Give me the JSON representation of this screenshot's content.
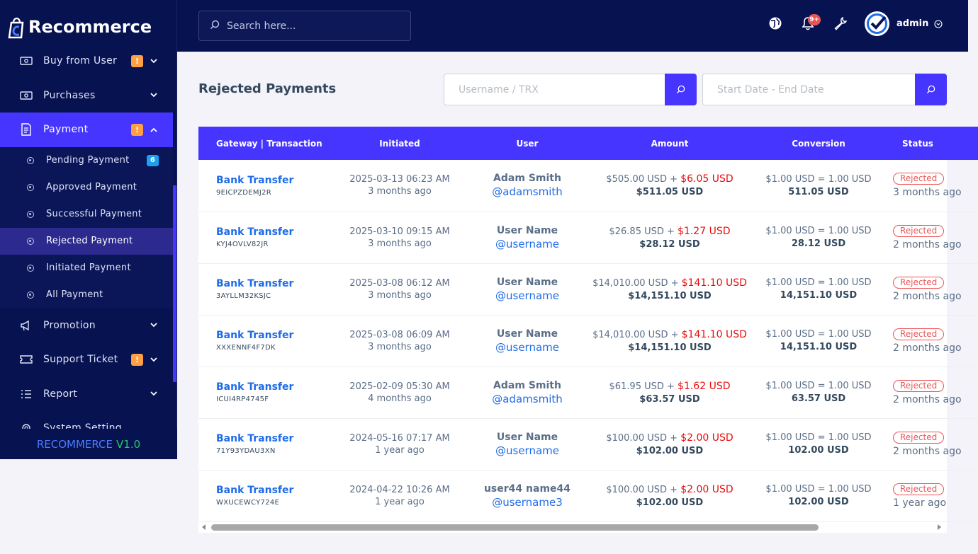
{
  "brand": {
    "logo_text": "Recommerce",
    "footer_brand": "RECOMMERCE",
    "footer_version": "V1.0"
  },
  "sidebar": {
    "items": [
      {
        "label": "Buy from User",
        "icon": "money-icon",
        "badge": "!",
        "chevron": "down"
      },
      {
        "label": "Purchases",
        "icon": "money-icon",
        "badge": "",
        "chevron": "down"
      },
      {
        "label": "Payment",
        "icon": "payment-icon",
        "badge": "!",
        "chevron": "up"
      },
      {
        "label": "Promotion",
        "icon": "megaphone-icon",
        "badge": "",
        "chevron": "down"
      },
      {
        "label": "Support Ticket",
        "icon": "ticket-icon",
        "badge": "!",
        "chevron": "down"
      },
      {
        "label": "Report",
        "icon": "list-icon",
        "badge": "",
        "chevron": "down"
      },
      {
        "label": "System Setting",
        "icon": "gear-icon",
        "badge": "",
        "chevron": ""
      }
    ],
    "payment_submenu": [
      {
        "label": "Pending Payment",
        "badge": "6"
      },
      {
        "label": "Approved Payment",
        "badge": ""
      },
      {
        "label": "Successful Payment",
        "badge": ""
      },
      {
        "label": "Rejected Payment",
        "badge": ""
      },
      {
        "label": "Initiated Payment",
        "badge": ""
      },
      {
        "label": "All Payment",
        "badge": ""
      }
    ]
  },
  "topbar": {
    "search_placeholder": "Search here...",
    "notification_badge": "9+",
    "username": "admin"
  },
  "main": {
    "title": "Rejected Payments",
    "filter_trx_placeholder": "Username / TRX",
    "filter_date_placeholder": "Start Date - End Date"
  },
  "table": {
    "headers": [
      "Gateway | Transaction",
      "Initiated",
      "User",
      "Amount",
      "Conversion",
      "Status"
    ],
    "rows": [
      {
        "gateway": "Bank Transfer",
        "trx": "9EICPZDEMJ2R",
        "date": "2025-03-13 06:23 AM",
        "ago": "3 months ago",
        "name": "Adam Smith",
        "handle": "@adamsmith",
        "amount": "$505.00 USD +",
        "charge": "$6.05 USD",
        "total": "$511.05 USD",
        "rate": "$1.00 USD = 1.00 USD",
        "conv_total": "511.05 USD",
        "status": "Rejected",
        "status_ago": "3 months ago"
      },
      {
        "gateway": "Bank Transfer",
        "trx": "KYJ4OVLV82JR",
        "date": "2025-03-10 09:15 AM",
        "ago": "3 months ago",
        "name": "User Name",
        "handle": "@username",
        "amount": "$26.85 USD +",
        "charge": "$1.27 USD",
        "total": "$28.12 USD",
        "rate": "$1.00 USD = 1.00 USD",
        "conv_total": "28.12 USD",
        "status": "Rejected",
        "status_ago": "2 months ago"
      },
      {
        "gateway": "Bank Transfer",
        "trx": "3AYLLM32KSJC",
        "date": "2025-03-08 06:12 AM",
        "ago": "3 months ago",
        "name": "User Name",
        "handle": "@username",
        "amount": "$14,010.00 USD +",
        "charge": "$141.10 USD",
        "total": "$14,151.10 USD",
        "rate": "$1.00 USD = 1.00 USD",
        "conv_total": "14,151.10 USD",
        "status": "Rejected",
        "status_ago": "2 months ago"
      },
      {
        "gateway": "Bank Transfer",
        "trx": "XXXENNF4F7DK",
        "date": "2025-03-08 06:09 AM",
        "ago": "3 months ago",
        "name": "User Name",
        "handle": "@username",
        "amount": "$14,010.00 USD +",
        "charge": "$141.10 USD",
        "total": "$14,151.10 USD",
        "rate": "$1.00 USD = 1.00 USD",
        "conv_total": "14,151.10 USD",
        "status": "Rejected",
        "status_ago": "2 months ago"
      },
      {
        "gateway": "Bank Transfer",
        "trx": "ICUI4RP4745F",
        "date": "2025-02-09 05:30 AM",
        "ago": "4 months ago",
        "name": "Adam Smith",
        "handle": "@adamsmith",
        "amount": "$61.95 USD +",
        "charge": "$1.62 USD",
        "total": "$63.57 USD",
        "rate": "$1.00 USD = 1.00 USD",
        "conv_total": "63.57 USD",
        "status": "Rejected",
        "status_ago": "2 months ago"
      },
      {
        "gateway": "Bank Transfer",
        "trx": "71Y93YDAU3XN",
        "date": "2024-05-16 07:17 AM",
        "ago": "1 year ago",
        "name": "User Name",
        "handle": "@username",
        "amount": "$100.00 USD +",
        "charge": "$2.00 USD",
        "total": "$102.00 USD",
        "rate": "$1.00 USD = 1.00 USD",
        "conv_total": "102.00 USD",
        "status": "Rejected",
        "status_ago": "2 months ago"
      },
      {
        "gateway": "Bank Transfer",
        "trx": "WXUCEWCY724E",
        "date": "2024-04-22 10:26 AM",
        "ago": "1 year ago",
        "name": "user44 name44",
        "handle": "@username3",
        "amount": "$100.00 USD +",
        "charge": "$2.00 USD",
        "total": "$102.00 USD",
        "rate": "$1.00 USD = 1.00 USD",
        "conv_total": "102.00 USD",
        "status": "Rejected",
        "status_ago": "1 year ago"
      }
    ]
  },
  "colors": {
    "sidebar_bg": "#071251",
    "accent": "#4634ff",
    "link": "#1f6ce8",
    "danger": "#ea5455",
    "warning_badge": "#ff9f43"
  }
}
